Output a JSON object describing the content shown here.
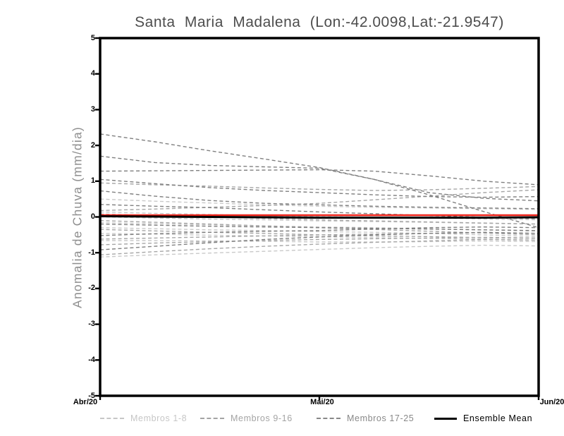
{
  "chart_data": {
    "type": "line",
    "title": "Santa Maria Madalena (Lon:-42.0098,Lat:-21.9547)",
    "ylabel": "Anomalia de Chuva (mm/dia)",
    "xlabel": "",
    "ylim": [
      -5,
      5
    ],
    "yticks": [
      5,
      4,
      3,
      2,
      1,
      0,
      -1,
      -2,
      -3,
      -4,
      -5
    ],
    "x_ticklabels": [
      "Abr/20",
      "Mai/20",
      "Jun/20"
    ],
    "grid": false,
    "legend_position": "bottom",
    "x": [
      0,
      0.125,
      0.25,
      0.375,
      0.5,
      0.625,
      0.75,
      0.875,
      1
    ],
    "series_groups": [
      {
        "name": "Membros 1-8",
        "color": "#c9c9c9",
        "line_style": "dashed",
        "members": [
          [
            0.5,
            0.44,
            0.39,
            0.34,
            0.3,
            0.27,
            0.25,
            0.23,
            0.21
          ],
          [
            0.14,
            0.1,
            0.07,
            0.04,
            0.01,
            -0.01,
            -0.03,
            -0.06,
            -0.08
          ],
          [
            0.0,
            -0.03,
            -0.06,
            -0.08,
            -0.11,
            -0.13,
            -0.15,
            -0.18,
            -0.2
          ],
          [
            -0.16,
            -0.19,
            -0.22,
            -0.25,
            -0.28,
            -0.3,
            -0.33,
            -0.36,
            -0.4
          ],
          [
            -0.3,
            -0.33,
            -0.36,
            -0.38,
            -0.41,
            -0.43,
            -0.46,
            -0.5,
            -0.55
          ],
          [
            -0.46,
            -0.48,
            -0.51,
            -0.53,
            -0.55,
            -0.58,
            -0.6,
            -0.62,
            -0.65
          ],
          [
            -0.66,
            -0.66,
            -0.67,
            -0.68,
            -0.7,
            -0.7,
            -0.69,
            -0.67,
            -0.69
          ],
          [
            -1.12,
            -1.06,
            -1.01,
            -0.96,
            -0.91,
            -0.86,
            -0.82,
            -0.79,
            -0.81
          ]
        ]
      },
      {
        "name": "Membros 9-16",
        "color": "#a6a6a6",
        "line_style": "dashed",
        "members": [
          [
            0.95,
            0.9,
            0.86,
            0.81,
            0.77,
            0.74,
            0.76,
            0.8,
            0.85
          ],
          [
            0.18,
            0.22,
            0.27,
            0.32,
            0.38,
            0.48,
            0.58,
            0.68,
            0.76
          ],
          [
            0.08,
            0.04,
            0.0,
            -0.04,
            -0.08,
            -0.11,
            -0.14,
            -0.17,
            -0.2
          ],
          [
            -0.1,
            -0.15,
            -0.2,
            -0.25,
            -0.3,
            -0.35,
            -0.4,
            -0.45,
            -0.5
          ],
          [
            -0.35,
            -0.39,
            -0.43,
            -0.46,
            -0.5,
            -0.53,
            -0.55,
            -0.58,
            -0.6
          ],
          [
            -0.62,
            -0.59,
            -0.56,
            -0.53,
            -0.5,
            -0.48,
            -0.46,
            -0.44,
            -0.46
          ],
          [
            -0.78,
            -0.73,
            -0.69,
            -0.66,
            -0.63,
            -0.61,
            -0.59,
            -0.57,
            -0.59
          ],
          [
            -1.06,
            -0.97,
            -0.89,
            -0.82,
            -0.76,
            -0.71,
            -0.67,
            -0.63,
            -0.65
          ]
        ]
      },
      {
        "name": "Membros 17-25",
        "color": "#808080",
        "line_style": "dashed",
        "members": [
          [
            2.32,
            2.1,
            1.85,
            1.62,
            1.38,
            1.05,
            0.62,
            0.15,
            -0.3
          ],
          [
            1.7,
            1.52,
            1.44,
            1.4,
            1.36,
            1.05,
            0.68,
            0.52,
            0.45
          ],
          [
            1.28,
            1.29,
            1.3,
            1.31,
            1.32,
            1.28,
            1.15,
            1.0,
            0.9
          ],
          [
            1.05,
            0.93,
            0.82,
            0.74,
            0.68,
            0.62,
            0.57,
            0.55,
            0.57
          ],
          [
            0.73,
            0.58,
            0.46,
            0.38,
            0.34,
            0.3,
            0.27,
            0.25,
            0.23
          ],
          [
            0.35,
            0.3,
            0.26,
            0.2,
            0.14,
            0.09,
            0.04,
            -0.01,
            -0.05
          ],
          [
            -0.2,
            -0.23,
            -0.26,
            -0.28,
            -0.3,
            -0.32,
            -0.34,
            -0.36,
            -0.38
          ],
          [
            -0.52,
            -0.47,
            -0.43,
            -0.4,
            -0.38,
            -0.34,
            -0.3,
            -0.28,
            -0.3
          ],
          [
            -0.92,
            -0.82,
            -0.72,
            -0.63,
            -0.56,
            -0.5,
            -0.46,
            -0.43,
            -0.46
          ]
        ]
      }
    ],
    "reference_line": {
      "name": "zero-reference",
      "color": "#ee231a",
      "value": 0.05
    },
    "ensemble_mean": {
      "name": "Ensemble Mean",
      "color": "#000000",
      "values": [
        0.02,
        0.01,
        0.0,
        -0.01,
        -0.02,
        -0.02,
        -0.02,
        -0.02,
        -0.01
      ]
    }
  },
  "legend": {
    "items": [
      {
        "label": "Membros 1-8",
        "color": "#c6c6c6",
        "line_style": "dashed"
      },
      {
        "label": "Membros 9-16",
        "color": "#a4a4a4",
        "line_style": "dashed"
      },
      {
        "label": "Membros 17-25",
        "color": "#888888",
        "line_style": "dashed"
      },
      {
        "label": "Ensemble Mean",
        "color": "#000000",
        "line_style": "solid"
      }
    ]
  },
  "colors": {
    "frame": "#000000",
    "title_text": "#4d4d4d",
    "axis_label_text": "#8f8f8f",
    "tick_label_text": "#000000",
    "background": "#ffffff"
  }
}
